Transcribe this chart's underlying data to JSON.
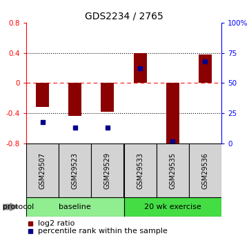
{
  "title": "GDS2234 / 2765",
  "samples": [
    "GSM29507",
    "GSM29523",
    "GSM29529",
    "GSM29533",
    "GSM29535",
    "GSM29536"
  ],
  "log2_ratio": [
    -0.32,
    -0.43,
    -0.38,
    0.4,
    -0.8,
    0.38
  ],
  "percentile_rank": [
    18,
    13,
    13,
    62,
    2,
    68
  ],
  "ylim_left": [
    -0.8,
    0.8
  ],
  "ylim_right": [
    0,
    100
  ],
  "yticks_left": [
    -0.8,
    -0.4,
    0,
    0.4,
    0.8
  ],
  "yticks_right": [
    0,
    25,
    50,
    75,
    100
  ],
  "bar_color": "#8b0000",
  "dot_color": "#00008b",
  "bg_color": "#ffffff",
  "zero_line_color": "#ff3333",
  "dotted_line_color": "#000000",
  "sample_box_color": "#d3d3d3",
  "baseline_color": "#90ee90",
  "exercise_color": "#44dd44",
  "protocol_arrow_color": "#888888"
}
